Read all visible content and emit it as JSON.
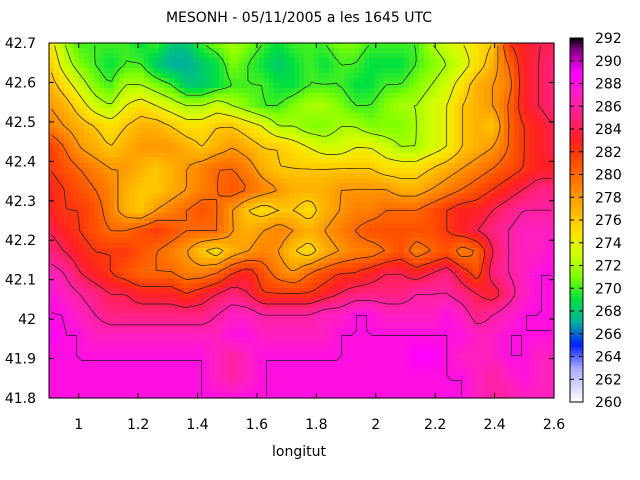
{
  "chart_data": {
    "type": "heatmap",
    "title": "MESONH - 05/11/2005 a les 1645 UTC",
    "xlabel": "longitut",
    "ylabel": "",
    "xlim": [
      0.9,
      2.6
    ],
    "ylim": [
      41.8,
      42.7
    ],
    "x_ticks": [
      "1",
      "1.2",
      "1.4",
      "1.6",
      "1.8",
      "2",
      "2.2",
      "2.4",
      "2.6"
    ],
    "y_ticks": [
      "42.7",
      "42.6",
      "42.5",
      "42.4",
      "42.3",
      "42.2",
      "42.1",
      "42",
      "41.9",
      "41.8"
    ],
    "colorbar": {
      "min": 260,
      "max": 292,
      "ticks": [
        "292",
        "290",
        "288",
        "286",
        "284",
        "282",
        "280",
        "278",
        "276",
        "274",
        "272",
        "270",
        "268",
        "266",
        "264",
        "262",
        "260"
      ],
      "stops": [
        {
          "value": 260,
          "color": "#ffffff"
        },
        {
          "value": 263,
          "color": "#a8a8ff"
        },
        {
          "value": 265,
          "color": "#0020ff"
        },
        {
          "value": 267,
          "color": "#00b0a0"
        },
        {
          "value": 269,
          "color": "#00e040"
        },
        {
          "value": 271,
          "color": "#80ff00"
        },
        {
          "value": 273,
          "color": "#d0ff00"
        },
        {
          "value": 275,
          "color": "#ffe000"
        },
        {
          "value": 277,
          "color": "#ffb000"
        },
        {
          "value": 279,
          "color": "#ff8000"
        },
        {
          "value": 281,
          "color": "#ff5000"
        },
        {
          "value": 283,
          "color": "#ff2020"
        },
        {
          "value": 285,
          "color": "#ff2080"
        },
        {
          "value": 287,
          "color": "#ff20c0"
        },
        {
          "value": 289,
          "color": "#ff00ff"
        },
        {
          "value": 291,
          "color": "#800080"
        },
        {
          "value": 292,
          "color": "#000000"
        }
      ]
    },
    "field_rows": [
      [
        275,
        272,
        270,
        270,
        270,
        270,
        269,
        270,
        268,
        268,
        270,
        271,
        272,
        271,
        270,
        269,
        270,
        270,
        270,
        271,
        271,
        270,
        270,
        270,
        270,
        272,
        273,
        274,
        275,
        276,
        282,
        283,
        284,
        284
      ],
      [
        276,
        273,
        271,
        270,
        269,
        270,
        270,
        268,
        267,
        267,
        268,
        269,
        271,
        270,
        269,
        268,
        269,
        270,
        269,
        270,
        270,
        269,
        269,
        269,
        270,
        271,
        272,
        273,
        275,
        277,
        280,
        283,
        284,
        285
      ],
      [
        277,
        275,
        273,
        271,
        270,
        272,
        272,
        271,
        270,
        268,
        268,
        269,
        270,
        270,
        270,
        269,
        269,
        270,
        270,
        270,
        269,
        269,
        270,
        270,
        271,
        272,
        273,
        275,
        277,
        278,
        279,
        283,
        284,
        285
      ],
      [
        278,
        277,
        275,
        273,
        272,
        274,
        275,
        274,
        273,
        272,
        272,
        273,
        272,
        271,
        270,
        270,
        271,
        272,
        272,
        271,
        270,
        270,
        271,
        272,
        272,
        273,
        274,
        276,
        277,
        278,
        280,
        283,
        284,
        285
      ],
      [
        279,
        278,
        277,
        276,
        275,
        276,
        277,
        277,
        276,
        275,
        275,
        276,
        276,
        275,
        274,
        272,
        272,
        271,
        271,
        272,
        272,
        271,
        271,
        271,
        272,
        273,
        274,
        276,
        277,
        276,
        280,
        282,
        283,
        284
      ],
      [
        282,
        280,
        278,
        277,
        276,
        277,
        278,
        278,
        278,
        277,
        276,
        277,
        278,
        277,
        276,
        276,
        275,
        274,
        273,
        273,
        274,
        274,
        273,
        272,
        272,
        273,
        274,
        276,
        277,
        278,
        280,
        282,
        283,
        284
      ],
      [
        282,
        281,
        280,
        279,
        278,
        278,
        277,
        276,
        277,
        278,
        279,
        280,
        280,
        279,
        277,
        276,
        276,
        276,
        276,
        276,
        276,
        276,
        275,
        275,
        275,
        276,
        277,
        278,
        279,
        280,
        281,
        282,
        283,
        283
      ],
      [
        283,
        282,
        281,
        280,
        279,
        277,
        276,
        276,
        277,
        278,
        279,
        280,
        281,
        280,
        279,
        278,
        277,
        277,
        277,
        278,
        278,
        278,
        278,
        277,
        277,
        278,
        279,
        280,
        281,
        282,
        283,
        284,
        285,
        285
      ],
      [
        283,
        282,
        282,
        281,
        279,
        277,
        276,
        278,
        279,
        280,
        281,
        280,
        278,
        276,
        275,
        276,
        276,
        275,
        277,
        278,
        279,
        279,
        280,
        280,
        280,
        281,
        282,
        283,
        283,
        284,
        285,
        286,
        286,
        286
      ],
      [
        284,
        283,
        282,
        281,
        280,
        280,
        281,
        282,
        281,
        280,
        280,
        280,
        278,
        277,
        278,
        279,
        278,
        277,
        278,
        279,
        280,
        281,
        281,
        281,
        281,
        281,
        282,
        283,
        284,
        285,
        286,
        287,
        287,
        287
      ],
      [
        285,
        284,
        283,
        282,
        282,
        282,
        281,
        280,
        279,
        278,
        276,
        275,
        277,
        278,
        279,
        278,
        276,
        275,
        277,
        278,
        279,
        279,
        280,
        281,
        279,
        280,
        281,
        279,
        280,
        284,
        286,
        287,
        287,
        288
      ],
      [
        287,
        286,
        284,
        283,
        282,
        281,
        280,
        280,
        280,
        279,
        279,
        280,
        282,
        283,
        281,
        279,
        278,
        280,
        281,
        282,
        282,
        283,
        284,
        284,
        283,
        284,
        285,
        283,
        281,
        285,
        286,
        287,
        288,
        288
      ],
      [
        288,
        287,
        286,
        285,
        284,
        284,
        283,
        283,
        283,
        282,
        283,
        284,
        285,
        284,
        282,
        282,
        282,
        282,
        283,
        284,
        285,
        285,
        285,
        285,
        286,
        286,
        286,
        285,
        284,
        283,
        285,
        287,
        288,
        288
      ],
      [
        288,
        288,
        287,
        286,
        285,
        285,
        285,
        285,
        285,
        285,
        285,
        286,
        287,
        287,
        286,
        286,
        286,
        286,
        287,
        287,
        288,
        288,
        287,
        287,
        287,
        287,
        288,
        287,
        285,
        286,
        287,
        288,
        288,
        288
      ],
      [
        289,
        288,
        288,
        287,
        287,
        287,
        287,
        287,
        287,
        287,
        287,
        287,
        288,
        288,
        287,
        287,
        287,
        287,
        287,
        288,
        288,
        288,
        288,
        288,
        288,
        288,
        288,
        288,
        287,
        287,
        288,
        288,
        288,
        288
      ],
      [
        288,
        288,
        288,
        288,
        288,
        288,
        288,
        288,
        288,
        288,
        288,
        287,
        286,
        287,
        288,
        288,
        288,
        288,
        288,
        288,
        288,
        288,
        288,
        288,
        289,
        289,
        288,
        287,
        287,
        287,
        288,
        288,
        287,
        287
      ],
      [
        288,
        288,
        288,
        288,
        288,
        288,
        288,
        288,
        288,
        288,
        288,
        287,
        286,
        287,
        288,
        288,
        288,
        288,
        288,
        288,
        288,
        288,
        288,
        288,
        288,
        288,
        288,
        288,
        287,
        286,
        287,
        288,
        287,
        287
      ],
      [
        288,
        288,
        288,
        288,
        288,
        288,
        288,
        288,
        288,
        288,
        288,
        288,
        288,
        288,
        288,
        288,
        288,
        288,
        288,
        288,
        288,
        288,
        288,
        288,
        288,
        288,
        288,
        288,
        287,
        286,
        286,
        287,
        287,
        287
      ]
    ]
  }
}
